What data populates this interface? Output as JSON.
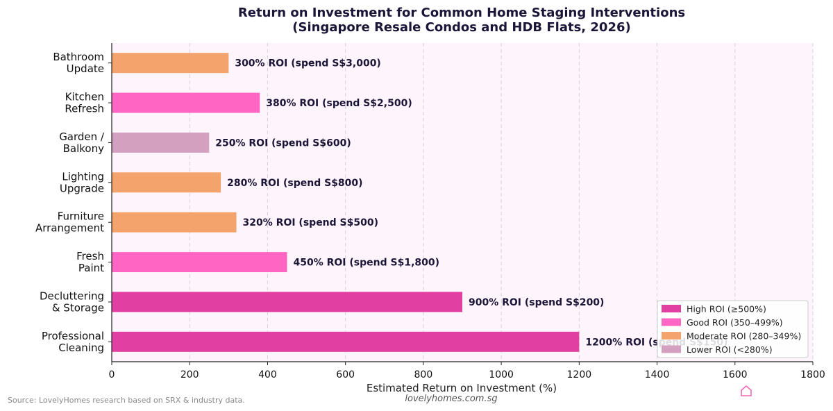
{
  "chart_data": {
    "type": "bar",
    "orientation": "horizontal",
    "title": "Return on Investment for Common Home Staging Interventions",
    "subtitle": "(Singapore Resale Condos and HDB Flats, 2026)",
    "xlabel": "Estimated Return on Investment (%)",
    "ylabel": "",
    "xlim": [
      0,
      1800
    ],
    "xticks": [
      0,
      200,
      400,
      600,
      800,
      1000,
      1200,
      1400,
      1600,
      1800
    ],
    "grid": "vertical dashed",
    "legend_position": "bottom-right",
    "categories": [
      [
        "Bathroom",
        "Update"
      ],
      [
        "Kitchen",
        "Refresh"
      ],
      [
        "Garden /",
        "Balkony"
      ],
      [
        "Lighting",
        "Upgrade"
      ],
      [
        "Furniture",
        "Arrangement"
      ],
      [
        "Fresh",
        "Paint"
      ],
      [
        "Decluttering",
        "& Storage"
      ],
      [
        "Professional",
        "Cleaning"
      ]
    ],
    "values": [
      300,
      380,
      250,
      280,
      320,
      450,
      900,
      1200
    ],
    "tiers": [
      "moderate",
      "good",
      "lower",
      "moderate",
      "moderate",
      "good",
      "high",
      "high"
    ],
    "data_labels": [
      "300% ROI  (spend S$3,000)",
      "380% ROI  (spend S$2,500)",
      "250% ROI  (spend S$600)",
      "280% ROI  (spend S$800)",
      "320% ROI  (spend S$500)",
      "450% ROI  (spend S$1,800)",
      "900% ROI  (spend S$200)",
      "1200% ROI  (spend S$150)"
    ],
    "legend": [
      {
        "key": "high",
        "label": "High ROI (≥500%)",
        "color": "#e23fa3"
      },
      {
        "key": "good",
        "label": "Good ROI (350–499%)",
        "color": "#ff66c4"
      },
      {
        "key": "moderate",
        "label": "Moderate ROI (280–349%)",
        "color": "#f4a36c"
      },
      {
        "key": "lower",
        "label": "Lower ROI (<280%)",
        "color": "#d4a0c0"
      }
    ]
  },
  "colors": {
    "plot_background": "#fdf5fb",
    "grid": "#d8d0d8",
    "title": "#1b1538"
  },
  "footer": {
    "source": "Source: LovelyHomes research based on SRX & industry data.",
    "website": "lovelyhomes.com.sg",
    "logo_icon": "house-outline-icon"
  }
}
